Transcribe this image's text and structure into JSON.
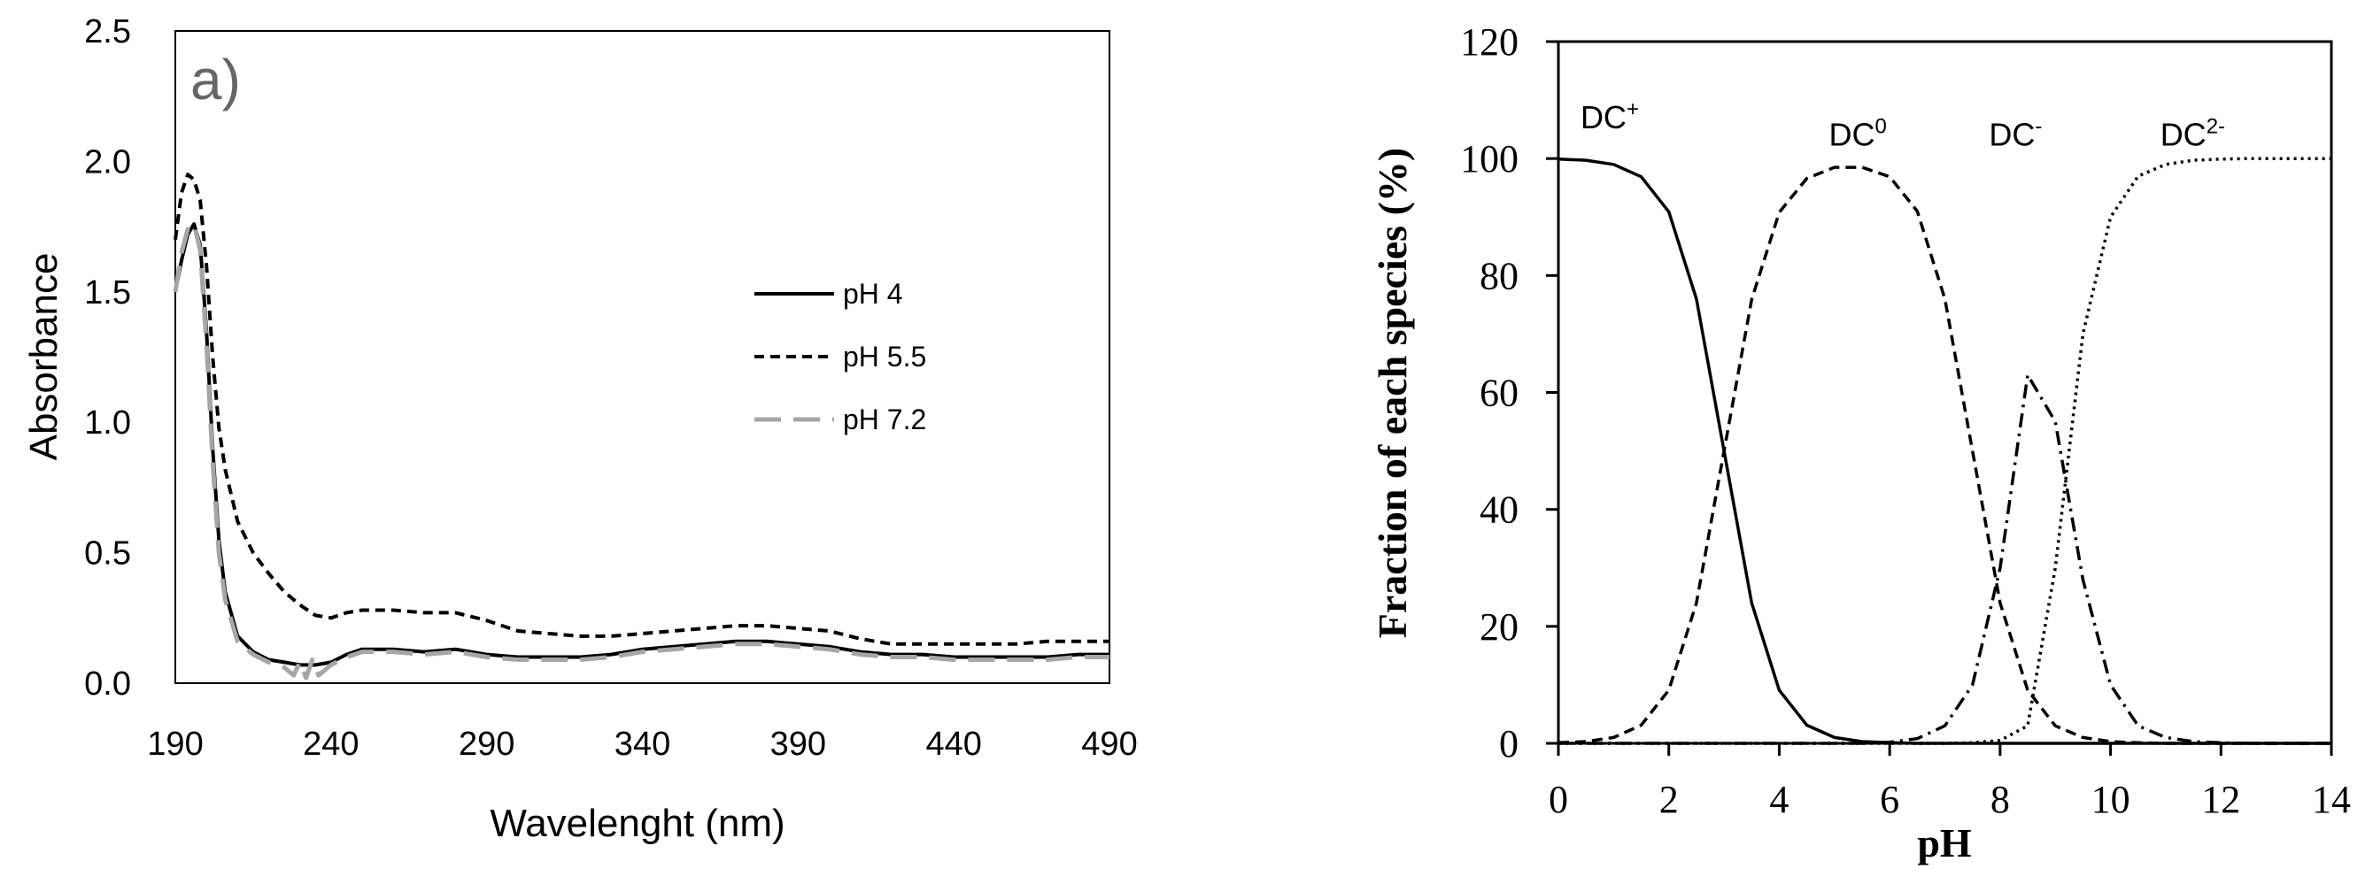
{
  "chart_data": [
    {
      "type": "line",
      "panel_label": "a)",
      "xlabel": "Wavelenght (nm)",
      "ylabel": "Absorbance",
      "xlim": [
        190,
        490
      ],
      "ylim": [
        0,
        2.5
      ],
      "xticks": [
        "190",
        "240",
        "290",
        "340",
        "390",
        "440",
        "490"
      ],
      "yticks": [
        "0.0",
        "0.5",
        "1.0",
        "1.5",
        "2.0",
        "2.5"
      ],
      "grid": false,
      "legend_position": "right",
      "series": [
        {
          "name": "pH 4",
          "color": "#000000",
          "style": "solid",
          "x": [
            190,
            192,
            194,
            196,
            198,
            200,
            202,
            204,
            206,
            210,
            215,
            220,
            225,
            230,
            235,
            240,
            245,
            250,
            260,
            270,
            280,
            290,
            300,
            310,
            320,
            330,
            340,
            350,
            360,
            370,
            380,
            390,
            400,
            410,
            420,
            430,
            440,
            450,
            460,
            470,
            480,
            490
          ],
          "y": [
            1.5,
            1.62,
            1.72,
            1.76,
            1.68,
            1.35,
            0.9,
            0.55,
            0.35,
            0.18,
            0.12,
            0.09,
            0.08,
            0.07,
            0.07,
            0.08,
            0.11,
            0.13,
            0.13,
            0.12,
            0.13,
            0.11,
            0.1,
            0.1,
            0.1,
            0.11,
            0.13,
            0.14,
            0.15,
            0.16,
            0.16,
            0.15,
            0.14,
            0.12,
            0.11,
            0.11,
            0.1,
            0.1,
            0.1,
            0.1,
            0.11,
            0.11
          ]
        },
        {
          "name": "pH 5.5",
          "color": "#000000",
          "style": "dashed",
          "x": [
            190,
            192,
            194,
            196,
            198,
            200,
            202,
            204,
            206,
            208,
            210,
            215,
            220,
            225,
            230,
            235,
            240,
            245,
            250,
            260,
            270,
            280,
            290,
            300,
            310,
            320,
            330,
            340,
            350,
            360,
            370,
            380,
            390,
            400,
            410,
            420,
            430,
            440,
            450,
            460,
            470,
            480,
            490
          ],
          "y": [
            1.7,
            1.88,
            1.95,
            1.93,
            1.85,
            1.6,
            1.25,
            0.98,
            0.82,
            0.72,
            0.62,
            0.5,
            0.42,
            0.35,
            0.3,
            0.26,
            0.25,
            0.27,
            0.28,
            0.28,
            0.27,
            0.27,
            0.24,
            0.2,
            0.19,
            0.18,
            0.18,
            0.19,
            0.2,
            0.21,
            0.22,
            0.22,
            0.21,
            0.2,
            0.17,
            0.15,
            0.15,
            0.15,
            0.15,
            0.15,
            0.16,
            0.16,
            0.16
          ]
        },
        {
          "name": "pH 7.2",
          "color": "#a6a6a6",
          "style": "long-dash",
          "x": [
            190,
            192,
            194,
            196,
            198,
            200,
            202,
            204,
            206,
            210,
            215,
            220,
            225,
            228,
            230,
            232,
            234,
            236,
            240,
            245,
            250,
            260,
            270,
            280,
            290,
            300,
            310,
            320,
            330,
            340,
            350,
            360,
            370,
            380,
            390,
            400,
            410,
            420,
            430,
            440,
            450,
            460,
            470,
            480,
            490
          ],
          "y": [
            1.5,
            1.65,
            1.74,
            1.76,
            1.66,
            1.3,
            0.85,
            0.5,
            0.32,
            0.16,
            0.11,
            0.08,
            0.06,
            0.03,
            0.08,
            0.02,
            0.09,
            0.03,
            0.07,
            0.1,
            0.12,
            0.12,
            0.11,
            0.12,
            0.1,
            0.09,
            0.09,
            0.09,
            0.1,
            0.12,
            0.13,
            0.14,
            0.15,
            0.15,
            0.14,
            0.13,
            0.11,
            0.1,
            0.1,
            0.09,
            0.09,
            0.09,
            0.09,
            0.1,
            0.1
          ]
        }
      ]
    },
    {
      "type": "line",
      "xlabel": "pH",
      "ylabel": "Fraction of each species (%)",
      "xlim": [
        0,
        14
      ],
      "ylim": [
        0,
        120
      ],
      "xticks": [
        "0",
        "2",
        "4",
        "6",
        "8",
        "10",
        "12",
        "14"
      ],
      "yticks": [
        "0",
        "20",
        "40",
        "60",
        "80",
        "100",
        "120"
      ],
      "grid": false,
      "x": [
        0,
        0.5,
        1,
        1.5,
        2,
        2.5,
        3,
        3.5,
        4,
        4.5,
        5,
        5.5,
        6,
        6.5,
        7,
        7.5,
        8,
        8.5,
        9,
        9.5,
        10,
        10.5,
        11,
        11.5,
        12,
        12.5,
        13,
        13.5,
        14
      ],
      "series": [
        {
          "label": {
            "base": "DC",
            "sup": "+"
          },
          "style": "solid",
          "at_x": 0.4,
          "at_y": 107,
          "values": [
            99.9,
            99.7,
            99.0,
            96.9,
            90.9,
            76.0,
            50.0,
            24.0,
            9.1,
            3.1,
            1.0,
            0.3,
            0.1,
            0.0,
            0.0,
            0.0,
            0.0,
            0.0,
            0.0,
            0.0,
            0.0,
            0.0,
            0.0,
            0.0,
            0.0,
            0.0,
            0.0,
            0.0,
            0.0
          ]
        },
        {
          "label": {
            "base": "DC",
            "sup": "0"
          },
          "style": "dashed",
          "at_x": 4.9,
          "at_y": 104,
          "values": [
            0.1,
            0.3,
            1.0,
            3.1,
            9.1,
            24.0,
            50.0,
            75.9,
            90.8,
            96.6,
            98.5,
            98.5,
            96.9,
            91.0,
            76.0,
            50.0,
            24.0,
            9.1,
            3.0,
            1.0,
            0.3,
            0.1,
            0.0,
            0.0,
            0.0,
            0.0,
            0.0,
            0.0,
            0.0
          ]
        },
        {
          "label": {
            "base": "DC",
            "sup": "-"
          },
          "style": "dash-dot",
          "at_x": 7.8,
          "at_y": 104,
          "values": [
            0.0,
            0.0,
            0.0,
            0.0,
            0.0,
            0.0,
            0.0,
            0.0,
            0.0,
            0.0,
            0.0,
            0.0,
            0.2,
            0.8,
            3.0,
            10.0,
            30.0,
            63.0,
            55.0,
            28.0,
            10.0,
            3.0,
            1.0,
            0.3,
            0.1,
            0.0,
            0.0,
            0.0,
            0.0
          ]
        },
        {
          "label": {
            "base": "DC",
            "sup": "2-"
          },
          "style": "dotted",
          "at_x": 10.9,
          "at_y": 104,
          "values": [
            0.0,
            0.0,
            0.0,
            0.0,
            0.0,
            0.0,
            0.0,
            0.0,
            0.0,
            0.0,
            0.0,
            0.0,
            0.0,
            0.0,
            0.0,
            0.1,
            0.5,
            3.0,
            30.0,
            70.0,
            90.0,
            97.0,
            99.0,
            99.7,
            99.9,
            100.0,
            100.0,
            100.0,
            100.0
          ]
        }
      ]
    }
  ]
}
